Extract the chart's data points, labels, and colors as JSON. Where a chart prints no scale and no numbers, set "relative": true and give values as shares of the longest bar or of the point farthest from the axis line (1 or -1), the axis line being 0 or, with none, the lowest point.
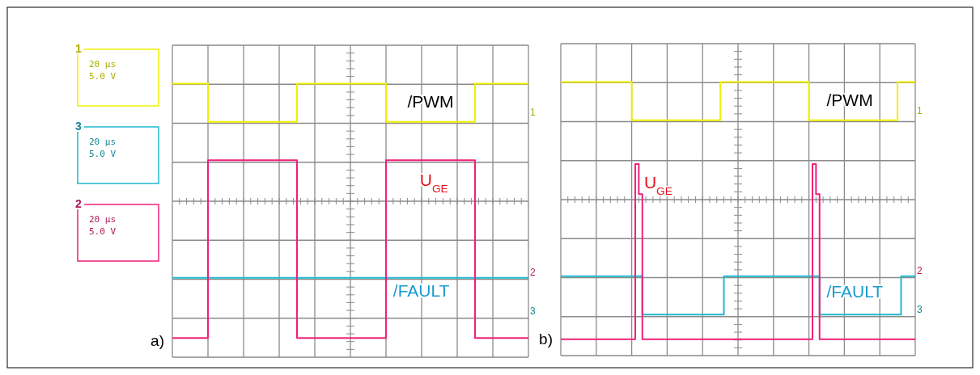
{
  "chart_data": [
    {
      "type": "step",
      "relative": true,
      "grid": true,
      "legend": false,
      "categories": [
        null,
        null,
        null,
        null,
        null,
        null,
        null,
        null,
        null,
        null,
        null,
        null,
        null,
        null,
        null,
        null,
        null,
        null,
        null,
        null,
        null,
        null,
        null,
        null,
        null,
        null,
        null,
        null,
        null,
        null,
        null,
        null,
        null,
        null,
        null,
        null,
        null,
        null,
        null,
        null,
        null
      ],
      "series": [
        {
          "name": "/PWM",
          "color": "#f0f000",
          "values": [
            1,
            1,
            1,
            1,
            0.86,
            0.86,
            0.86,
            0.86,
            0.86,
            0.86,
            0.86,
            0.86,
            0.86,
            0.86,
            1,
            1,
            1,
            1,
            1,
            1,
            1,
            1,
            1,
            1,
            0.86,
            0.86,
            0.86,
            0.86,
            0.86,
            0.86,
            0.86,
            0.86,
            0.86,
            0.86,
            1,
            1,
            1,
            1,
            1,
            1,
            1
          ]
        },
        {
          "name": "/FAULT",
          "color": "#20b8d0",
          "values": [
            0.29,
            0.29,
            0.29,
            0.29,
            0.29,
            0.29,
            0.29,
            0.29,
            0.29,
            0.29,
            0.29,
            0.29,
            0.29,
            0.29,
            0.29,
            0.29,
            0.29,
            0.29,
            0.29,
            0.29,
            0.29,
            0.29,
            0.29,
            0.29,
            0.29,
            0.29,
            0.29,
            0.29,
            0.29,
            0.29,
            0.29,
            0.29,
            0.29,
            0.29,
            0.29,
            0.29,
            0.29,
            0.29,
            0.29,
            0.29,
            0.29
          ]
        },
        {
          "name": "U$_{GE}$",
          "color": "#f0207a",
          "values": [
            0.07,
            0.07,
            0.07,
            0.07,
            0.72,
            0.72,
            0.72,
            0.72,
            0.72,
            0.72,
            0.72,
            0.72,
            0.72,
            0.72,
            0.07,
            0.07,
            0.07,
            0.07,
            0.07,
            0.07,
            0.07,
            0.07,
            0.07,
            0.07,
            0.72,
            0.72,
            0.72,
            0.72,
            0.72,
            0.72,
            0.72,
            0.72,
            0.72,
            0.72,
            0.07,
            0.07,
            0.07,
            0.07,
            0.07,
            0.07,
            0.07
          ]
        }
      ],
      "annotations": [
        "a)",
        "1",
        "20 µs",
        "5.0 V",
        "3",
        "20 µs",
        "5.0 V",
        "2",
        "20 µs",
        "5.0 V",
        "1",
        "2",
        "3"
      ]
    },
    {
      "type": "step",
      "relative": true,
      "grid": true,
      "legend": false,
      "categories": [
        null,
        null,
        null,
        null,
        null,
        null,
        null,
        null,
        null,
        null,
        null,
        null,
        null,
        null,
        null,
        null,
        null,
        null,
        null,
        null,
        null,
        null,
        null,
        null,
        null,
        null,
        null,
        null,
        null,
        null,
        null,
        null,
        null,
        null,
        null,
        null,
        null,
        null,
        null,
        null,
        null,
        null,
        null,
        null,
        null,
        null,
        null,
        null,
        null,
        null,
        null,
        null,
        null,
        null,
        null,
        null,
        null,
        null,
        null,
        null,
        null,
        null,
        null,
        null,
        null,
        null,
        null,
        null,
        null,
        null,
        null,
        null,
        null,
        null,
        null,
        null,
        null,
        null,
        null,
        null,
        null,
        null,
        null,
        null,
        null,
        null,
        null,
        null,
        null,
        null,
        null,
        null,
        null,
        null,
        null,
        null,
        null,
        null,
        null,
        null,
        null
      ],
      "series": [
        {
          "name": "/PWM",
          "color": "#f0f000",
          "values": [
            1,
            1,
            1,
            1,
            1,
            1,
            1,
            1,
            1,
            1,
            1,
            1,
            1,
            1,
            1,
            1,
            1,
            1,
            1,
            1,
            0.86,
            0.86,
            0.86,
            0.86,
            0.86,
            0.86,
            0.86,
            0.86,
            0.86,
            0.86,
            0.86,
            0.86,
            0.86,
            0.86,
            0.86,
            0.86,
            0.86,
            0.86,
            0.86,
            0.86,
            0.86,
            0.86,
            0.86,
            0.86,
            0.86,
            1,
            1,
            1,
            1,
            1,
            1,
            1,
            1,
            1,
            1,
            1,
            1,
            1,
            1,
            1,
            1,
            1,
            1,
            1,
            1,
            1,
            1,
            1,
            1,
            1,
            0.86,
            0.86,
            0.86,
            0.86,
            0.86,
            0.86,
            0.86,
            0.86,
            0.86,
            0.86,
            0.86,
            0.86,
            0.86,
            0.86,
            0.86,
            0.86,
            0.86,
            0.86,
            0.86,
            0.86,
            0.86,
            0.86,
            0.86,
            0.86,
            0.86,
            1,
            1,
            1,
            1,
            1,
            1
          ]
        },
        {
          "name": "/FAULT",
          "color": "#20b8d0",
          "values": [
            0.29,
            0.29,
            0.29,
            0.29,
            0.29,
            0.29,
            0.29,
            0.29,
            0.29,
            0.29,
            0.29,
            0.29,
            0.29,
            0.29,
            0.29,
            0.29,
            0.29,
            0.29,
            0.29,
            0.29,
            0.29,
            0.29,
            0.29,
            0.15,
            0.15,
            0.15,
            0.15,
            0.15,
            0.15,
            0.15,
            0.15,
            0.15,
            0.15,
            0.15,
            0.15,
            0.15,
            0.15,
            0.15,
            0.15,
            0.15,
            0.15,
            0.15,
            0.15,
            0.15,
            0.15,
            0.15,
            0.29,
            0.29,
            0.29,
            0.29,
            0.29,
            0.29,
            0.29,
            0.29,
            0.29,
            0.29,
            0.29,
            0.29,
            0.29,
            0.29,
            0.29,
            0.29,
            0.29,
            0.29,
            0.29,
            0.29,
            0.29,
            0.29,
            0.29,
            0.29,
            0.29,
            0.29,
            0.29,
            0.15,
            0.15,
            0.15,
            0.15,
            0.15,
            0.15,
            0.15,
            0.15,
            0.15,
            0.15,
            0.15,
            0.15,
            0.15,
            0.15,
            0.15,
            0.15,
            0.15,
            0.15,
            0.15,
            0.15,
            0.15,
            0.15,
            0.15,
            0.29,
            0.29,
            0.29,
            0.29,
            0.29
          ]
        },
        {
          "name": "U$_{GE}$",
          "color": "#f0207a",
          "values": [
            0.06,
            0.06,
            0.06,
            0.06,
            0.06,
            0.06,
            0.06,
            0.06,
            0.06,
            0.06,
            0.06,
            0.06,
            0.06,
            0.06,
            0.06,
            0.06,
            0.06,
            0.06,
            0.06,
            0.06,
            0.06,
            0.7,
            0.59,
            0.06,
            0.06,
            0.06,
            0.06,
            0.06,
            0.06,
            0.06,
            0.06,
            0.06,
            0.06,
            0.06,
            0.06,
            0.06,
            0.06,
            0.06,
            0.06,
            0.06,
            0.06,
            0.06,
            0.06,
            0.06,
            0.06,
            0.06,
            0.06,
            0.06,
            0.06,
            0.06,
            0.06,
            0.06,
            0.06,
            0.06,
            0.06,
            0.06,
            0.06,
            0.06,
            0.06,
            0.06,
            0.06,
            0.06,
            0.06,
            0.06,
            0.06,
            0.06,
            0.06,
            0.06,
            0.06,
            0.06,
            0.06,
            0.7,
            0.59,
            0.06,
            0.06,
            0.06,
            0.06,
            0.06,
            0.06,
            0.06,
            0.06,
            0.06,
            0.06,
            0.06,
            0.06,
            0.06,
            0.06,
            0.06,
            0.06,
            0.06,
            0.06,
            0.06,
            0.06,
            0.06,
            0.06,
            0.06,
            0.06,
            0.06,
            0.06,
            0.06,
            0.06
          ]
        }
      ],
      "annotations": [
        "b)",
        "1",
        "2",
        "3"
      ]
    }
  ]
}
